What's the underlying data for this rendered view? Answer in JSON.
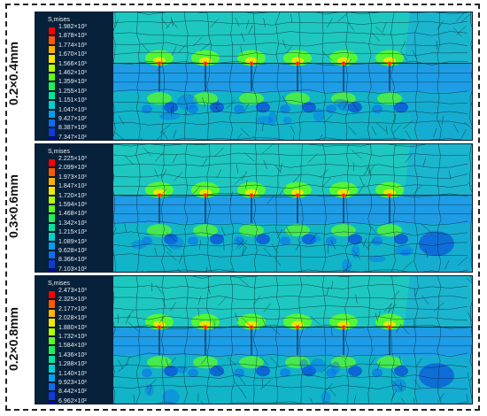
{
  "panels": [
    {
      "label": "0.2×0.4mm",
      "legend": {
        "title": "S,mises",
        "ticks": [
          "1.982×10³",
          "1.878×10³",
          "1.774×10³",
          "1.670×10³",
          "1.566×10³",
          "1.462×10³",
          "1.359×10³",
          "1.255×10³",
          "1.151×10³",
          "1.047×10³",
          "9.427×10²",
          "8.387×10²",
          "7.347×10²"
        ]
      }
    },
    {
      "label": "0.3×0.6mm",
      "legend": {
        "title": "S,mises",
        "ticks": [
          "2.225×10³",
          "2.099×10³",
          "1.973×10³",
          "1.847×10³",
          "1.720×10³",
          "1.594×10³",
          "1.468×10³",
          "1.342×10³",
          "1.215×10³",
          "1.089×10³",
          "9.628×10²",
          "8.366×10²",
          "7.103×10²"
        ]
      }
    },
    {
      "label": "0.2×0.8mm",
      "legend": {
        "title": "S,mises",
        "ticks": [
          "2.473×10³",
          "2.325×10³",
          "2.177×10³",
          "2.028×10³",
          "1.880×10³",
          "1.732×10³",
          "1.584×10³",
          "1.436×10³",
          "1.288×10³",
          "1.140×10³",
          "9.923×10²",
          "8.442×10²",
          "6.962×10²"
        ]
      }
    }
  ],
  "colors": {
    "contour": [
      "#ff0000",
      "#ff5a00",
      "#ffb400",
      "#f5e600",
      "#b4ff00",
      "#5cff1c",
      "#1cf05a",
      "#00e6a0",
      "#00d2d2",
      "#00a0f0",
      "#0a6ef0",
      "#0a3cdc",
      "#0000c8"
    ],
    "background_field": "#1ec8c0",
    "mid_band": "#1e9ce6",
    "mesh": "#0a1a2a"
  }
}
